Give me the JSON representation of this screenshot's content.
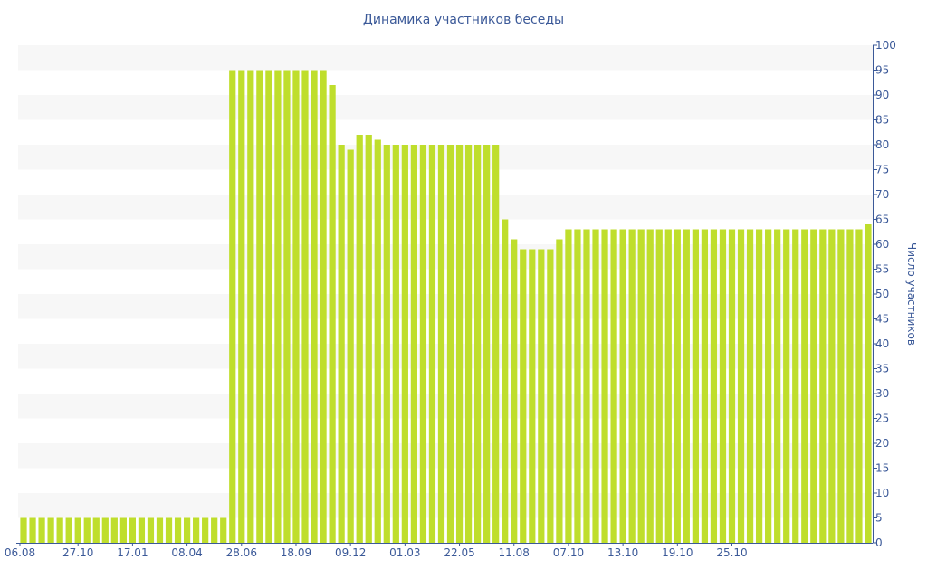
{
  "chart_data": {
    "type": "bar",
    "title": "Динамика участников беседы",
    "ylabel": "Число участников",
    "ylim": [
      0,
      100
    ],
    "y_ticks": [
      0,
      5,
      10,
      15,
      20,
      25,
      30,
      35,
      40,
      45,
      50,
      55,
      60,
      65,
      70,
      75,
      80,
      85,
      90,
      95,
      100
    ],
    "y_axis_side": "right",
    "x_tick_labels": [
      {
        "index": 0,
        "label": "06.08"
      },
      {
        "index": 6,
        "label": "27.10"
      },
      {
        "index": 12,
        "label": "17.01"
      },
      {
        "index": 18,
        "label": "08.04"
      },
      {
        "index": 24,
        "label": "28.06"
      },
      {
        "index": 30,
        "label": "18.09"
      },
      {
        "index": 36,
        "label": "09.12"
      },
      {
        "index": 42,
        "label": "01.03"
      },
      {
        "index": 48,
        "label": "22.05"
      },
      {
        "index": 54,
        "label": "11.08"
      },
      {
        "index": 60,
        "label": "07.10"
      },
      {
        "index": 66,
        "label": "13.10"
      },
      {
        "index": 72,
        "label": "19.10"
      },
      {
        "index": 78,
        "label": "25.10"
      }
    ],
    "values": [
      5,
      5,
      5,
      5,
      5,
      5,
      5,
      5,
      5,
      5,
      5,
      5,
      5,
      5,
      5,
      5,
      5,
      5,
      5,
      5,
      5,
      5,
      5,
      95,
      95,
      95,
      95,
      95,
      95,
      95,
      95,
      95,
      95,
      95,
      92,
      80,
      79,
      82,
      82,
      81,
      80,
      80,
      80,
      80,
      80,
      80,
      80,
      80,
      80,
      80,
      80,
      80,
      80,
      65,
      61,
      59,
      59,
      59,
      59,
      61,
      63,
      63,
      63,
      63,
      63,
      63,
      63,
      63,
      63,
      63,
      63,
      63,
      63,
      63,
      63,
      63,
      63,
      63,
      63,
      63,
      63,
      63,
      63,
      63,
      63,
      63,
      63,
      63,
      63,
      63,
      63,
      63,
      63,
      64
    ],
    "grid": "horizontal alternating bands",
    "colors": {
      "bar": "#bfde2c",
      "band": "#f7f7f7",
      "axis_text": "#3b5998",
      "axis_line": "#3b5998"
    }
  }
}
